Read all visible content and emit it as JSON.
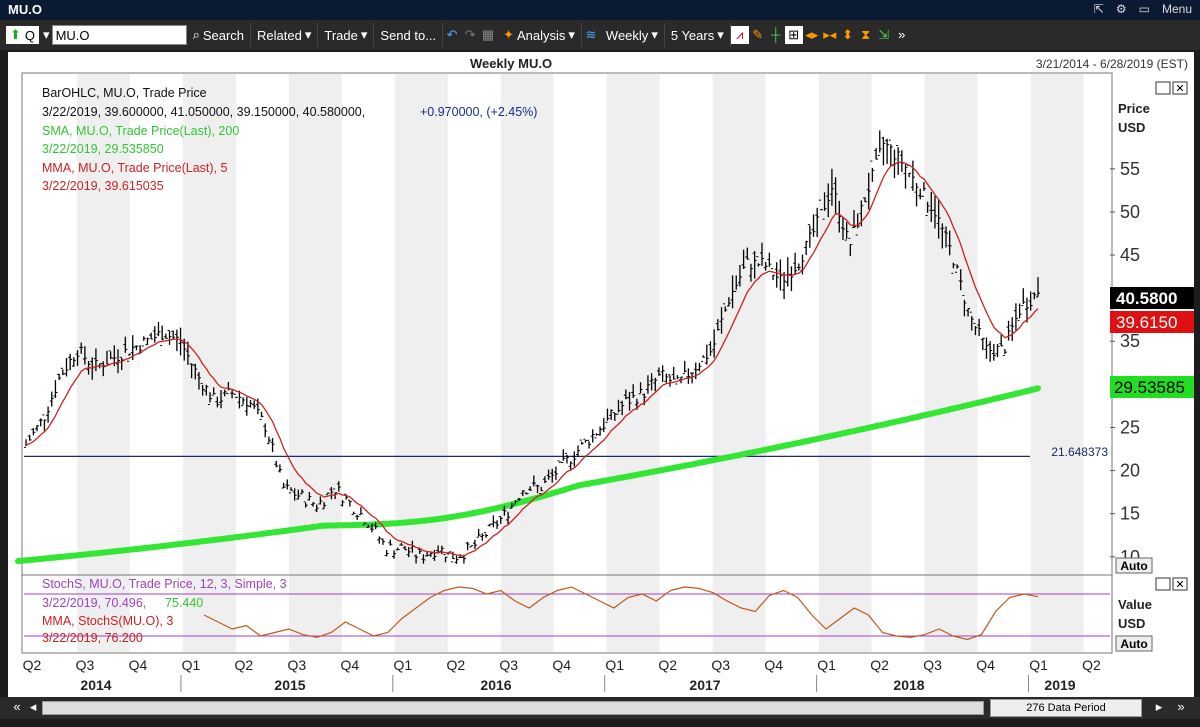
{
  "window": {
    "title": "MU.O",
    "menu_label": "Menu"
  },
  "toolbar": {
    "q_label": "Q",
    "symbol": "MU.O",
    "search": "Search",
    "related": "Related",
    "trade": "Trade",
    "send_to": "Send to...",
    "analysis": "Analysis",
    "interval": "Weekly",
    "range": "5 Years"
  },
  "chart_header": {
    "title": "Weekly MU.O",
    "date_range": "3/21/2014 - 6/28/2019 (EST)"
  },
  "legend": {
    "line1": "BarOHLC, MU.O, Trade Price",
    "line2a": "3/22/2019, 39.600000, 41.050000, 39.150000, 40.580000,",
    "line2b": "+0.970000, (+2.45%)",
    "line3": "SMA, MU.O, Trade Price(Last),  200",
    "line4": "3/22/2019, 29.535850",
    "line5": "MMA, MU.O, Trade Price(Last),  5",
    "line6": "3/22/2019, 39.615035"
  },
  "price_axis": {
    "title1": "Price",
    "title2": "USD",
    "auto": "Auto",
    "last_label": "40.5800",
    "mma_label": "39.6150",
    "sma_label": "29.53585",
    "hline_label": "21.648373"
  },
  "stoch_legend": {
    "line1": "StochS, MU.O, Trade Price,  12, 3, Simple, 3",
    "line2a": "3/22/2019, 70.496,",
    "line2b": "75.440",
    "line3": "MMA, StochS(MU.O),  3",
    "line4": "3/22/2019, 76.200"
  },
  "stoch_axis": {
    "title1": "Value",
    "title2": "USD",
    "auto": "Auto"
  },
  "footer": {
    "period": "276 Data Period"
  },
  "colors": {
    "bars": "#000000",
    "sma": "#33e633",
    "mma": "#cc2222",
    "stoch": "#c05a1a",
    "hline": "#1a2a6a",
    "stoch_lines": "#a040c0"
  },
  "chart_data": {
    "type": "line",
    "title": "Weekly MU.O",
    "x_quarter_labels": [
      "Q2",
      "Q3",
      "Q4",
      "Q1",
      "Q2",
      "Q3",
      "Q4",
      "Q1",
      "Q2",
      "Q3",
      "Q4",
      "Q1",
      "Q2",
      "Q3",
      "Q4",
      "Q1",
      "Q2",
      "Q3",
      "Q4",
      "Q1",
      "Q2"
    ],
    "x_year_labels": [
      "2014",
      "2015",
      "2016",
      "2017",
      "2018",
      "2019"
    ],
    "y_ticks": [
      10,
      15,
      20,
      25,
      35,
      45,
      50,
      55
    ],
    "ylim": [
      8,
      66
    ],
    "horizontal_line": 21.648373,
    "price_series_monthly": {
      "name": "MU.O Trade Price (approx. monthly close)",
      "dates": [
        "2014-04",
        "2014-05",
        "2014-06",
        "2014-07",
        "2014-08",
        "2014-09",
        "2014-10",
        "2014-11",
        "2014-12",
        "2015-01",
        "2015-02",
        "2015-03",
        "2015-04",
        "2015-05",
        "2015-06",
        "2015-07",
        "2015-08",
        "2015-09",
        "2015-10",
        "2015-11",
        "2015-12",
        "2016-01",
        "2016-02",
        "2016-03",
        "2016-04",
        "2016-05",
        "2016-06",
        "2016-07",
        "2016-08",
        "2016-09",
        "2016-10",
        "2016-11",
        "2016-12",
        "2017-01",
        "2017-02",
        "2017-03",
        "2017-04",
        "2017-05",
        "2017-06",
        "2017-07",
        "2017-08",
        "2017-09",
        "2017-10",
        "2017-11",
        "2017-12",
        "2018-01",
        "2018-02",
        "2018-03",
        "2018-04",
        "2018-05",
        "2018-06",
        "2018-07",
        "2018-08",
        "2018-09",
        "2018-10",
        "2018-11",
        "2018-12",
        "2019-01",
        "2019-02",
        "2019-03"
      ],
      "values": [
        23,
        26,
        31,
        34,
        32,
        33,
        34,
        35,
        36,
        35,
        31,
        28,
        29,
        28,
        25,
        18,
        17,
        16,
        18,
        16,
        14,
        11,
        11,
        10,
        11,
        10,
        11,
        13,
        15,
        18,
        18,
        20,
        22,
        24,
        26,
        28,
        29,
        31,
        30,
        32,
        34,
        40,
        44,
        44,
        42,
        44,
        48,
        53,
        46,
        52,
        58,
        56,
        53,
        50,
        45,
        38,
        34,
        34,
        39,
        40.58
      ]
    },
    "sma_200": {
      "name": "SMA 200",
      "start": 9.5,
      "end": 29.53585
    },
    "mma_5_last": 39.615035,
    "last_bar": {
      "date": "3/22/2019",
      "open": 39.6,
      "high": 41.05,
      "low": 39.15,
      "close": 40.58,
      "change": 0.97,
      "change_pct": 2.45
    },
    "stoch": {
      "ylim": [
        0,
        100
      ],
      "upper": 80,
      "lower": 20,
      "values": [
        50,
        40,
        30,
        35,
        20,
        25,
        30,
        22,
        18,
        25,
        40,
        30,
        20,
        25,
        45,
        60,
        75,
        85,
        90,
        88,
        80,
        85,
        70,
        60,
        75,
        85,
        90,
        80,
        70,
        60,
        75,
        80,
        70,
        85,
        90,
        88,
        82,
        70,
        60,
        55,
        78,
        85,
        75,
        50,
        30,
        45,
        60,
        50,
        25,
        20,
        18,
        22,
        30,
        20,
        15,
        22,
        55,
        75,
        80,
        76.2
      ]
    },
    "data_periods": 276
  }
}
